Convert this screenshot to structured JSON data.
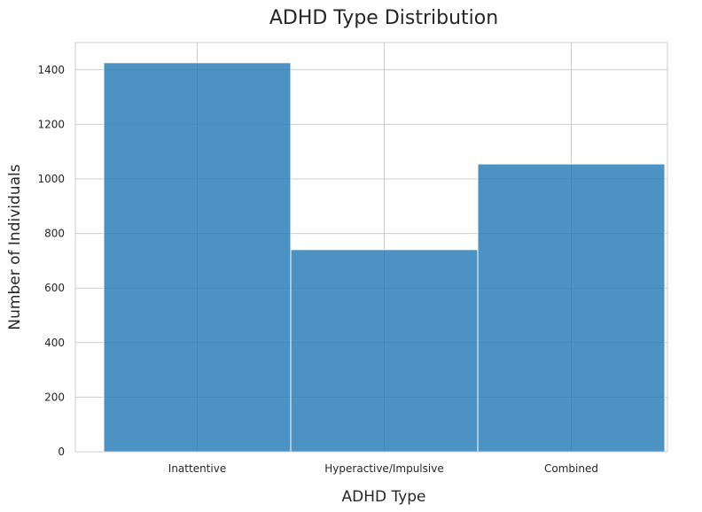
{
  "chart_data": {
    "type": "bar",
    "title": "ADHD Type Distribution",
    "xlabel": "ADHD Type",
    "ylabel": "Number of Individuals",
    "categories": [
      "Inattentive",
      "Hyperactive/Impulsive",
      "Combined"
    ],
    "values": [
      1426,
      741,
      1055
    ],
    "ylim": [
      0,
      1500
    ],
    "yticks": [
      0,
      200,
      400,
      600,
      800,
      1000,
      1200,
      1400
    ],
    "ytick_labels": [
      "0",
      "200",
      "400",
      "600",
      "800",
      "1000",
      "1200",
      "1400"
    ],
    "grid": true,
    "legend": "none",
    "bar_color": "#1f77b4"
  }
}
